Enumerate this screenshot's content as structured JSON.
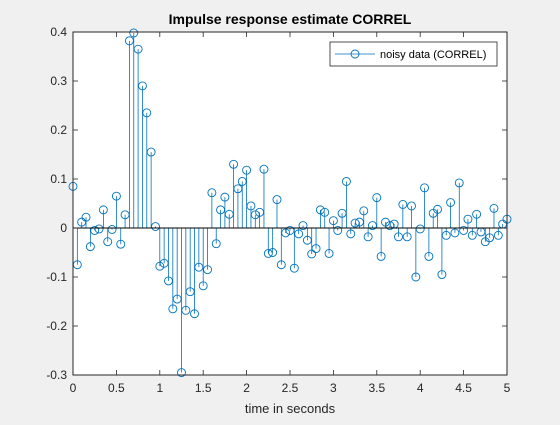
{
  "chart_data": {
    "type": "stem",
    "title": "Impulse response estimate CORREL",
    "xlabel": "time in seconds",
    "ylabel": "",
    "xlim": [
      0,
      5
    ],
    "ylim": [
      -0.3,
      0.4
    ],
    "xticks": [
      0,
      0.5,
      1,
      1.5,
      2,
      2.5,
      3,
      3.5,
      4,
      4.5,
      5
    ],
    "xtick_labels": [
      "0",
      "0.5",
      "1",
      "1.5",
      "2",
      "2.5",
      "3",
      "3.5",
      "4",
      "4.5",
      "5"
    ],
    "yticks": [
      -0.3,
      -0.2,
      -0.1,
      0,
      0.1,
      0.2,
      0.3,
      0.4
    ],
    "ytick_labels": [
      "-0.3",
      "-0.2",
      "-0.1",
      "0",
      "0.1",
      "0.2",
      "0.3",
      "0.4"
    ],
    "grid": false,
    "legend_position": "top-right",
    "color": "#0072bd",
    "series": [
      {
        "name": "noisy data (CORREL)",
        "x": [
          0,
          0.05,
          0.1,
          0.15,
          0.2,
          0.25,
          0.3,
          0.35,
          0.4,
          0.45,
          0.5,
          0.55,
          0.6,
          0.65,
          0.7,
          0.75,
          0.8,
          0.85,
          0.9,
          0.95,
          1,
          1.05,
          1.1,
          1.15,
          1.2,
          1.25,
          1.3,
          1.35,
          1.4,
          1.45,
          1.5,
          1.55,
          1.6,
          1.65,
          1.7,
          1.75,
          1.8,
          1.85,
          1.9,
          1.95,
          2,
          2.05,
          2.1,
          2.15,
          2.2,
          2.25,
          2.3,
          2.35,
          2.4,
          2.45,
          2.5,
          2.55,
          2.6,
          2.65,
          2.7,
          2.75,
          2.8,
          2.85,
          2.9,
          2.95,
          3,
          3.05,
          3.1,
          3.15,
          3.2,
          3.25,
          3.3,
          3.35,
          3.4,
          3.45,
          3.5,
          3.55,
          3.6,
          3.65,
          3.7,
          3.75,
          3.8,
          3.85,
          3.9,
          3.95,
          4,
          4.05,
          4.1,
          4.15,
          4.2,
          4.25,
          4.3,
          4.35,
          4.4,
          4.45,
          4.5,
          4.55,
          4.6,
          4.65,
          4.7,
          4.75,
          4.8,
          4.85,
          4.9,
          4.95,
          5
        ],
        "values": [
          0.085,
          -0.075,
          0.012,
          0.022,
          -0.038,
          -0.005,
          -0.002,
          0.037,
          -0.028,
          -0.003,
          0.065,
          -0.033,
          0.027,
          0.382,
          0.398,
          0.365,
          0.29,
          0.235,
          0.155,
          0.003,
          -0.078,
          -0.072,
          -0.108,
          -0.165,
          -0.145,
          -0.295,
          -0.168,
          -0.13,
          -0.175,
          -0.08,
          -0.118,
          -0.085,
          0.072,
          -0.032,
          0.037,
          0.063,
          0.028,
          0.13,
          0.08,
          0.095,
          0.118,
          0.045,
          0.027,
          0.032,
          0.12,
          -0.052,
          -0.05,
          0.058,
          -0.075,
          -0.01,
          -0.005,
          -0.082,
          -0.012,
          0.005,
          -0.025,
          -0.053,
          -0.042,
          0.037,
          0.032,
          -0.052,
          0.015,
          -0.005,
          0.03,
          0.095,
          -0.012,
          0.01,
          0.012,
          0.035,
          -0.018,
          0.005,
          0.062,
          -0.058,
          0.012,
          0.005,
          0.008,
          -0.018,
          0.048,
          -0.018,
          0.045,
          -0.1,
          -0.002,
          0.082,
          -0.058,
          0.03,
          0.038,
          -0.095,
          -0.015,
          0.052,
          -0.01,
          0.092,
          -0.005,
          0.018,
          -0.015,
          0.028,
          -0.008,
          -0.028,
          -0.02,
          0.04,
          -0.015,
          0.008,
          0.018
        ]
      }
    ]
  }
}
